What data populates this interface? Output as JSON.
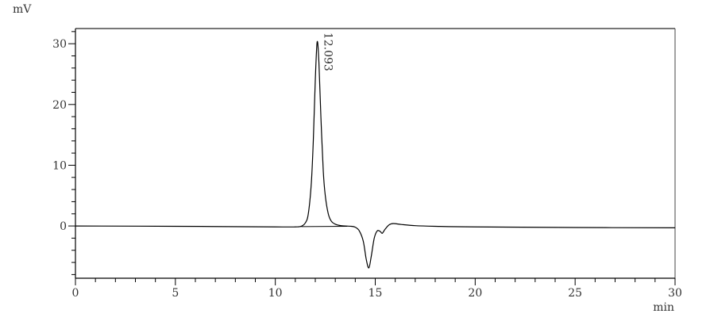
{
  "chart_data": {
    "type": "line",
    "title": "",
    "xlabel": "min",
    "ylabel": "mV",
    "xlim": [
      0,
      30
    ],
    "ylim": [
      -8.6,
      32.5
    ],
    "x_ticks": [
      0,
      5,
      10,
      15,
      20,
      25,
      30
    ],
    "y_ticks": [
      0,
      10,
      20,
      30
    ],
    "x_minor_step": 1,
    "y_minor_step": 2,
    "grid": false,
    "line_color": "#000000",
    "series": [
      {
        "x": [
          0,
          5,
          10,
          11,
          11.3,
          11.5,
          11.65,
          11.8,
          11.9,
          12.0,
          12.093,
          12.18,
          12.28,
          12.4,
          12.5,
          12.65,
          12.8,
          13.0,
          13.3,
          13.8,
          14.0,
          14.2,
          14.4,
          14.55,
          14.68,
          14.8,
          14.95,
          15.1,
          15.25,
          15.35,
          15.5,
          15.7,
          15.9,
          16.3,
          17,
          18,
          20,
          25,
          30
        ],
        "y": [
          0,
          -0.05,
          -0.15,
          -0.15,
          -0.05,
          0.5,
          2,
          7,
          14,
          24,
          30.3,
          27,
          18,
          9,
          5,
          2,
          0.8,
          0.3,
          0.05,
          -0.05,
          -0.2,
          -0.8,
          -2.5,
          -5.5,
          -6.9,
          -5,
          -2,
          -0.8,
          -0.9,
          -1.2,
          -0.5,
          0.2,
          0.4,
          0.25,
          0.05,
          -0.05,
          -0.15,
          -0.25,
          -0.3
        ]
      }
    ],
    "integration_baseline": {
      "x": [
        11.3,
        13.6
      ],
      "y": [
        -0.1,
        -0.05
      ]
    },
    "annotations": [
      {
        "label": "12.093",
        "x": 12.093,
        "y": 30.3
      }
    ]
  }
}
